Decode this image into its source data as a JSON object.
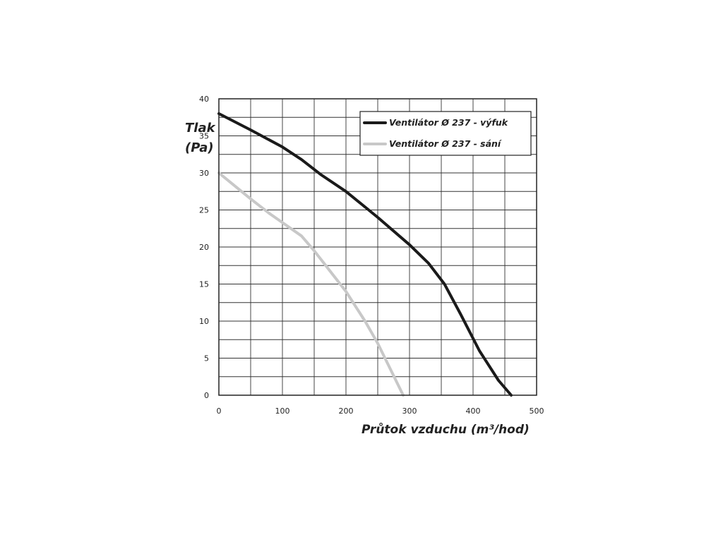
{
  "chart_data": {
    "type": "line",
    "ylabel_line1": "Tlak",
    "ylabel_line2": "(Pa)",
    "xlabel": "Průtok vzduchu (m³/hod)",
    "xlim": [
      0,
      500
    ],
    "ylim": [
      0,
      40
    ],
    "x_ticks": [
      0,
      100,
      200,
      300,
      400,
      500
    ],
    "y_ticks": [
      0,
      5,
      10,
      15,
      20,
      25,
      30,
      35,
      40
    ],
    "grid": true,
    "legend_position": "top-right",
    "series": [
      {
        "name": "Ventilátor Ø 237 - výfuk",
        "color": "#1a1a1a",
        "points": [
          [
            0,
            38
          ],
          [
            50,
            35.8
          ],
          [
            100,
            33.5
          ],
          [
            130,
            31.8
          ],
          [
            160,
            29.8
          ],
          [
            200,
            27.5
          ],
          [
            250,
            24
          ],
          [
            300,
            20.3
          ],
          [
            330,
            17.8
          ],
          [
            355,
            15
          ],
          [
            380,
            11
          ],
          [
            410,
            6
          ],
          [
            440,
            2
          ],
          [
            460,
            0
          ]
        ]
      },
      {
        "name": "Ventilátor Ø 237 - sání",
        "color": "#c8c8c8",
        "points": [
          [
            0,
            30
          ],
          [
            50,
            26.5
          ],
          [
            80,
            24.5
          ],
          [
            100,
            23.3
          ],
          [
            130,
            21.5
          ],
          [
            150,
            19.5
          ],
          [
            170,
            17.3
          ],
          [
            200,
            14
          ],
          [
            230,
            10
          ],
          [
            250,
            7
          ],
          [
            270,
            3.5
          ],
          [
            290,
            0
          ]
        ]
      }
    ]
  }
}
